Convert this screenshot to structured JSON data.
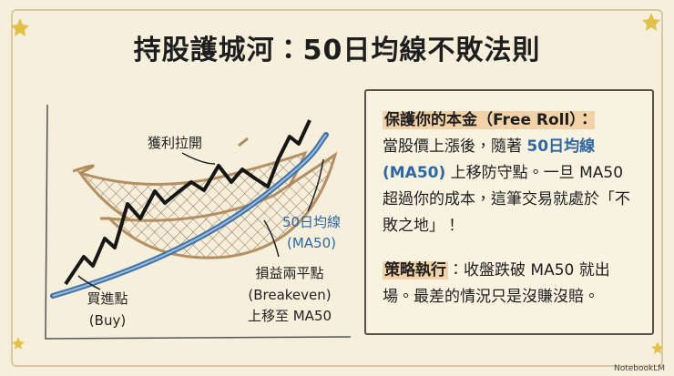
{
  "title": "持股護城河：50日均線不敗法則",
  "diagram": {
    "profit_label": "獲利拉開",
    "ma_label": [
      "50日均線",
      "(MA50)"
    ],
    "breakeven_label": [
      "損益兩平點",
      "(Breakeven)",
      "上移至 MA50"
    ],
    "buy_label": [
      "買進點",
      "(Buy)"
    ]
  },
  "panel": {
    "paragraphs": [
      {
        "heading": "保護你的本金（Free Roll）：",
        "text_before": "當股價上漲後，隨著 ",
        "highlight": "50日均線 (MA50)",
        "text_after": " 上移防守點。一旦 MA50 超過你的成本，這筆交易就處於「不敗之地」！"
      },
      {
        "heading": "策略執行",
        "text": "：收盤跌破 MA50 就出場。最差的情況只是沒賺沒賠。"
      }
    ]
  },
  "watermark": "NotebookLM"
}
